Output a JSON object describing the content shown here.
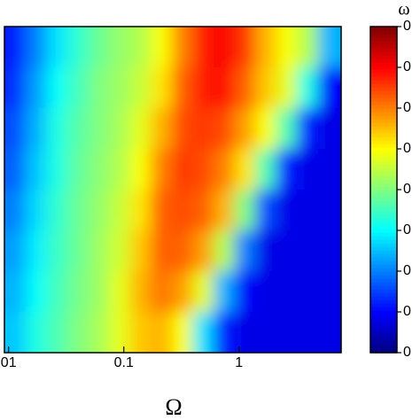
{
  "chart_data": {
    "type": "heatmap",
    "x_label": "Ω",
    "colorbar_label": "ω",
    "xscale": "log",
    "xlim": [
      0.0092,
      7.7
    ],
    "xticks": [
      {
        "value": 0.01,
        "label": "01"
      },
      0.1,
      1
    ],
    "x_bins": [
      0.0092,
      0.014,
      0.0212,
      0.0322,
      0.0489,
      0.0742,
      0.113,
      0.171,
      0.26,
      0.394,
      0.598,
      0.908,
      1.38,
      2.09,
      3.17,
      4.82,
      7.7
    ],
    "zlim": [
      0,
      1
    ],
    "colorbar_ticks": [
      {
        "value": 0,
        "label": "0"
      },
      {
        "value": 0.125,
        "label": "0"
      },
      {
        "value": 0.25,
        "label": "0"
      },
      {
        "value": 0.375,
        "label": "0"
      },
      {
        "value": 0.5,
        "label": "0"
      },
      {
        "value": 0.625,
        "label": "0"
      },
      {
        "value": 0.75,
        "label": "0"
      },
      {
        "value": 0.875,
        "label": "0"
      },
      {
        "value": 1,
        "label": "0"
      }
    ],
    "colormap": "jet",
    "z": [
      [
        0.15,
        0.25,
        0.35,
        0.42,
        0.48,
        0.52,
        0.55,
        0.62,
        0.75,
        0.85,
        0.88,
        0.82,
        0.7,
        0.62,
        0.55,
        0.3
      ],
      [
        0.17,
        0.28,
        0.38,
        0.44,
        0.5,
        0.53,
        0.57,
        0.65,
        0.78,
        0.85,
        0.86,
        0.78,
        0.68,
        0.6,
        0.4,
        0.12
      ],
      [
        0.2,
        0.3,
        0.4,
        0.46,
        0.5,
        0.54,
        0.6,
        0.7,
        0.8,
        0.82,
        0.8,
        0.72,
        0.62,
        0.45,
        0.15,
        0.1
      ],
      [
        0.22,
        0.32,
        0.4,
        0.47,
        0.51,
        0.55,
        0.62,
        0.75,
        0.82,
        0.8,
        0.75,
        0.65,
        0.45,
        0.15,
        0.1,
        0.1
      ],
      [
        0.25,
        0.34,
        0.42,
        0.48,
        0.52,
        0.57,
        0.65,
        0.78,
        0.8,
        0.78,
        0.7,
        0.5,
        0.2,
        0.1,
        0.1,
        0.1
      ],
      [
        0.28,
        0.36,
        0.43,
        0.48,
        0.53,
        0.58,
        0.68,
        0.78,
        0.78,
        0.72,
        0.55,
        0.25,
        0.1,
        0.1,
        0.1,
        0.1
      ],
      [
        0.3,
        0.38,
        0.44,
        0.49,
        0.53,
        0.6,
        0.7,
        0.76,
        0.72,
        0.6,
        0.3,
        0.12,
        0.1,
        0.1,
        0.1,
        0.1
      ],
      [
        0.32,
        0.4,
        0.45,
        0.5,
        0.54,
        0.6,
        0.68,
        0.7,
        0.62,
        0.35,
        0.15,
        0.1,
        0.1,
        0.1,
        0.1,
        0.1
      ]
    ]
  }
}
